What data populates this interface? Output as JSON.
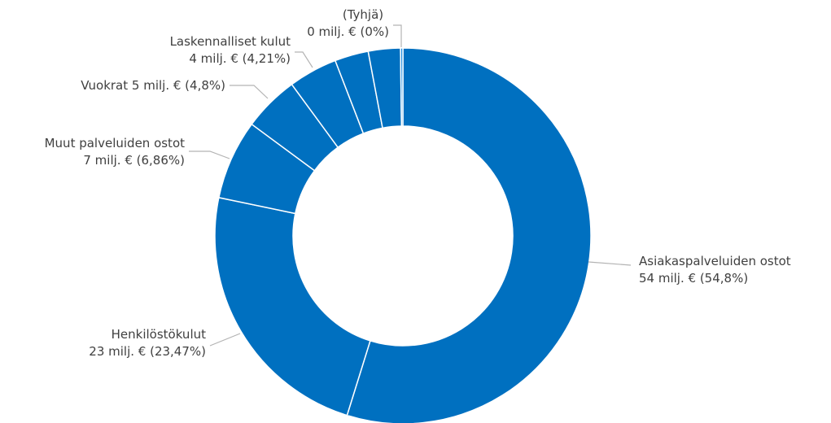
{
  "chart_data": {
    "type": "pie",
    "donut": true,
    "categories": [
      "Asiakaspalveluiden ostot",
      "Henkilöstökulut",
      "Muut palveluiden ostot",
      "Vuokrat",
      "Laskennalliset kulut",
      "",
      "",
      "(Tyhjä)"
    ],
    "values": [
      54.8,
      23.47,
      6.86,
      4.8,
      4.21,
      2.9,
      2.76,
      0.2
    ],
    "labels": [
      {
        "name": "Asiakaspalveluiden ostot",
        "value": "54 milj. € (54,8%)"
      },
      {
        "name": "Henkilöstökulut",
        "value": "23 milj. € (23,47%)"
      },
      {
        "name": "Muut palveluiden ostot",
        "value": "7 milj. € (6,86%)"
      },
      {
        "name": "Vuokrat",
        "value": "Vuokrat 5 milj. € (4,8%)"
      },
      {
        "name": "Laskennalliset kulut",
        "value": "4 milj. € (4,21%)"
      },
      {
        "name": "",
        "value": ""
      },
      {
        "name": "",
        "value": ""
      },
      {
        "name": "(Tyhjä)",
        "value": "0 milj. € (0%)"
      }
    ],
    "colors": [
      "#0070c0",
      "#0070c0",
      "#0070c0",
      "#0070c0",
      "#0070c0",
      "#0070c0",
      "#0070c0",
      "#1b8be0"
    ],
    "start": "top, clockwise"
  }
}
